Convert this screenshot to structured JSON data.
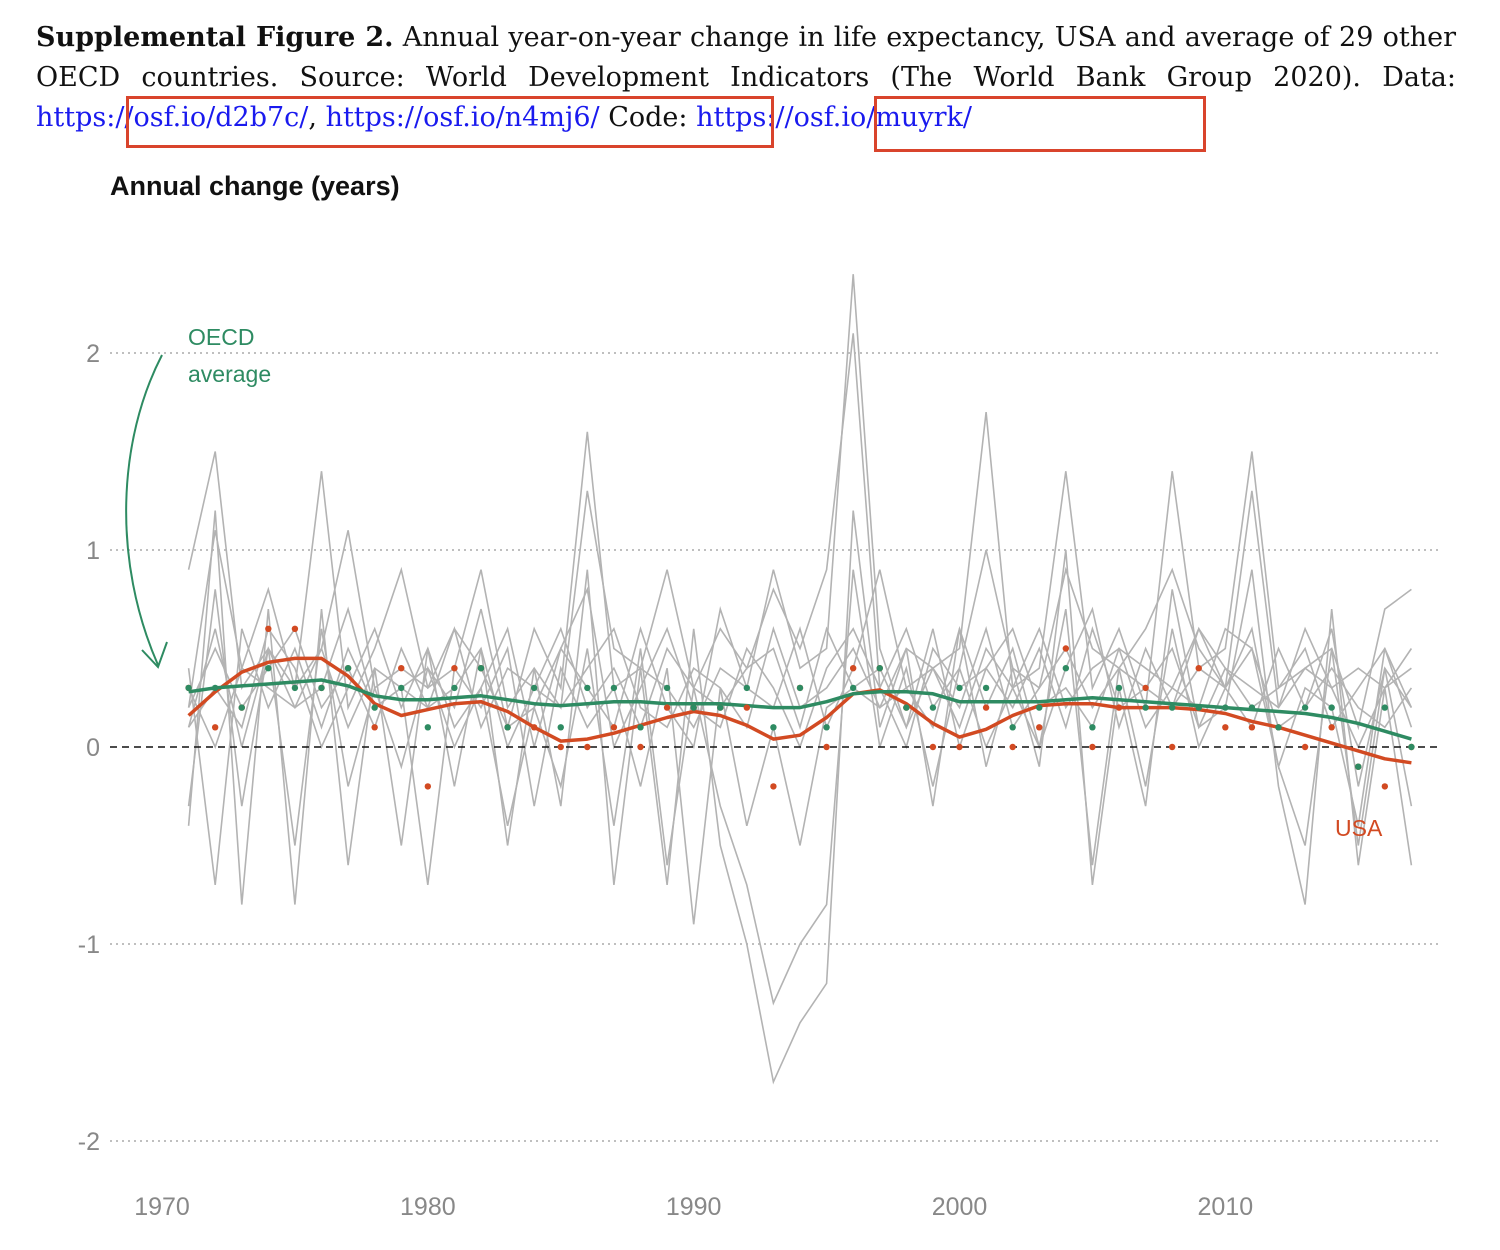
{
  "caption": {
    "label": "Supplemental Figure 2.",
    "text": "Annual year-on-year change in life expectancy, USA and average of 29 other OECD countries. Source: World Development Indicators (The World Bank Group 2020).",
    "data_label": "Data:",
    "data_link_1": "https://osf.io/d2b7c/",
    "separator": ",",
    "data_link_2": "https://osf.io/n4mj6/",
    "code_label": "Code:",
    "code_link": "https://osf.io/muyrk/"
  },
  "colors": {
    "usa": "#d24a22",
    "oecd": "#2e8b62",
    "countries": "#b3b3b3",
    "grid": "#aaaaaa",
    "highlight_box": "#d9442c",
    "link": "#1a1aee"
  },
  "chart_data": {
    "type": "line",
    "title": "Annual change (years)",
    "xlabel": "",
    "ylabel": "Annual change (years)",
    "xlim": [
      1970,
      2018
    ],
    "ylim": [
      -2,
      2.4
    ],
    "x_ticks": [
      1970,
      1980,
      1990,
      2000,
      2010
    ],
    "y_ticks": [
      -2,
      -1,
      0,
      1,
      2
    ],
    "grid": "horizontal dotted",
    "zero_line": "dashed",
    "annotations": [
      {
        "text_line1": "OECD",
        "text_line2": "average",
        "series": "OECD average",
        "arrow": true
      },
      {
        "text": "USA",
        "series": "USA"
      }
    ],
    "x": [
      1971,
      1972,
      1973,
      1974,
      1975,
      1976,
      1977,
      1978,
      1979,
      1980,
      1981,
      1982,
      1983,
      1984,
      1985,
      1986,
      1987,
      1988,
      1989,
      1990,
      1991,
      1992,
      1993,
      1994,
      1995,
      1996,
      1997,
      1998,
      1999,
      2000,
      2001,
      2002,
      2003,
      2004,
      2005,
      2006,
      2007,
      2008,
      2009,
      2010,
      2011,
      2012,
      2013,
      2014,
      2015,
      2016,
      2017
    ],
    "series": [
      {
        "name": "USA",
        "role": "points",
        "values": [
          0.3,
          0.1,
          0.2,
          0.6,
          0.6,
          0.3,
          0.4,
          0.1,
          0.4,
          -0.2,
          0.4,
          0.4,
          0.1,
          0.1,
          0.0,
          0.0,
          0.1,
          0.0,
          0.2,
          0.2,
          0.2,
          0.2,
          -0.2,
          0.3,
          0.0,
          0.4,
          0.4,
          0.2,
          0.0,
          0.0,
          0.2,
          0.0,
          0.1,
          0.5,
          0.0,
          0.2,
          0.3,
          0.0,
          0.4,
          0.1,
          0.1,
          0.1,
          0.0,
          0.1,
          -0.1,
          -0.2,
          0.0
        ]
      },
      {
        "name": "USA",
        "role": "smoothed",
        "values": [
          0.16,
          0.28,
          0.38,
          0.43,
          0.45,
          0.45,
          0.36,
          0.22,
          0.16,
          0.19,
          0.22,
          0.23,
          0.18,
          0.1,
          0.03,
          0.04,
          0.07,
          0.11,
          0.15,
          0.18,
          0.16,
          0.11,
          0.04,
          0.06,
          0.15,
          0.27,
          0.29,
          0.22,
          0.12,
          0.05,
          0.09,
          0.16,
          0.21,
          0.22,
          0.22,
          0.2,
          0.2,
          0.2,
          0.19,
          0.17,
          0.13,
          0.1,
          0.06,
          0.02,
          -0.02,
          -0.06,
          -0.08
        ]
      },
      {
        "name": "OECD average",
        "role": "points",
        "values": [
          0.3,
          0.3,
          0.2,
          0.4,
          0.3,
          0.3,
          0.4,
          0.2,
          0.3,
          0.1,
          0.3,
          0.4,
          0.1,
          0.3,
          0.1,
          0.3,
          0.3,
          0.1,
          0.3,
          0.2,
          0.2,
          0.3,
          0.1,
          0.3,
          0.1,
          0.3,
          0.4,
          0.2,
          0.2,
          0.3,
          0.3,
          0.1,
          0.2,
          0.4,
          0.1,
          0.3,
          0.2,
          0.2,
          0.2,
          0.2,
          0.2,
          0.1,
          0.2,
          0.2,
          -0.1,
          0.2,
          0.0
        ]
      },
      {
        "name": "OECD average",
        "role": "smoothed",
        "values": [
          0.28,
          0.3,
          0.31,
          0.32,
          0.33,
          0.34,
          0.31,
          0.26,
          0.24,
          0.24,
          0.25,
          0.26,
          0.24,
          0.22,
          0.21,
          0.22,
          0.23,
          0.23,
          0.22,
          0.22,
          0.22,
          0.21,
          0.2,
          0.2,
          0.23,
          0.27,
          0.28,
          0.28,
          0.27,
          0.23,
          0.23,
          0.23,
          0.23,
          0.24,
          0.25,
          0.24,
          0.23,
          0.22,
          0.21,
          0.2,
          0.19,
          0.18,
          0.17,
          0.15,
          0.12,
          0.08,
          0.04
        ]
      },
      {
        "name": "",
        "role": "country",
        "values": [
          0.9,
          1.5,
          0.3,
          0.5,
          0.3,
          0.5,
          1.1,
          0.3,
          0.4,
          0.3,
          0.6,
          0.4,
          0.1,
          0.6,
          0.3,
          1.6,
          0.3,
          0.4,
          0.3,
          0.1,
          0.4,
          0.3,
          0.9,
          0.4,
          0.5,
          2.4,
          0.5,
          0.1,
          0.4,
          0.5,
          1.7,
          0.3,
          0.4,
          1.4,
          0.3,
          0.6,
          0.2,
          1.4,
          0.4,
          0.5,
          1.5,
          0.3,
          0.4,
          0.5,
          0.1,
          0.7,
          0.8
        ]
      },
      {
        "name": "",
        "role": "country",
        "values": [
          0.2,
          1.1,
          0.4,
          0.8,
          0.3,
          1.4,
          0.2,
          0.5,
          0.9,
          0.3,
          0.4,
          0.9,
          0.2,
          0.4,
          0.2,
          1.3,
          0.5,
          0.4,
          0.9,
          0.3,
          0.6,
          0.4,
          0.8,
          0.5,
          0.9,
          2.1,
          0.3,
          0.6,
          0.2,
          0.4,
          1.0,
          0.4,
          0.3,
          0.9,
          0.5,
          0.4,
          0.6,
          0.9,
          0.5,
          0.3,
          1.3,
          0.2,
          0.6,
          0.3,
          0.4,
          0.3,
          0.5
        ]
      },
      {
        "name": "",
        "role": "country",
        "values": [
          -0.4,
          1.2,
          -0.8,
          0.7,
          -0.8,
          0.7,
          -0.6,
          0.4,
          -0.5,
          0.5,
          -0.2,
          0.5,
          -0.5,
          0.4,
          -0.3,
          0.9,
          -0.7,
          0.4,
          -0.7,
          0.6,
          -0.5,
          -1.0,
          -1.7,
          -1.4,
          -1.2,
          1.2,
          0.1,
          0.5,
          -0.3,
          0.6,
          -0.1,
          0.4,
          -0.1,
          1.0,
          -0.7,
          0.3,
          -0.3,
          0.8,
          0.1,
          0.2,
          0.9,
          -0.2,
          -0.8,
          0.7,
          -0.6,
          0.3,
          -0.6
        ]
      },
      {
        "name": "",
        "role": "country",
        "values": [
          -0.3,
          0.8,
          -0.3,
          0.5,
          -0.5,
          0.6,
          -0.2,
          0.3,
          -0.1,
          0.4,
          0.0,
          0.3,
          -0.4,
          0.2,
          -0.2,
          0.5,
          -0.4,
          0.5,
          -0.6,
          0.3,
          -0.3,
          -0.7,
          -1.3,
          -1.0,
          -0.8,
          0.9,
          0.0,
          0.4,
          -0.2,
          0.4,
          0.0,
          0.3,
          0.0,
          0.7,
          -0.6,
          0.4,
          -0.2,
          0.6,
          0.0,
          0.3,
          0.6,
          -0.1,
          -0.5,
          0.5,
          -0.5,
          0.4,
          -0.3
        ]
      },
      {
        "name": "",
        "role": "country",
        "values": [
          0.4,
          -0.7,
          0.6,
          0.2,
          0.5,
          0.1,
          0.5,
          0.2,
          0.3,
          -0.7,
          0.4,
          0.2,
          0.5,
          -0.3,
          0.4,
          0.1,
          0.3,
          -0.2,
          0.4,
          -0.9,
          0.3,
          -0.4,
          0.1,
          -0.5,
          0.2,
          0.3,
          0.4,
          0.1,
          0.6,
          0.0,
          0.4,
          0.2,
          0.5,
          0.1,
          0.6,
          0.2,
          0.3,
          0.2,
          0.4,
          0.3,
          0.5,
          -0.1,
          0.3,
          0.2,
          -0.4,
          0.5,
          0.1
        ]
      },
      {
        "name": "",
        "role": "country",
        "values": [
          0.1,
          0.3,
          0.1,
          0.6,
          0.4,
          0.0,
          0.3,
          0.6,
          0.2,
          0.5,
          0.1,
          0.3,
          0.6,
          0.0,
          0.5,
          0.3,
          0.1,
          0.6,
          0.2,
          0.0,
          0.7,
          0.3,
          0.2,
          0.6,
          0.1,
          0.4,
          0.9,
          0.3,
          0.1,
          0.6,
          0.2,
          0.5,
          0.0,
          0.4,
          0.7,
          0.1,
          0.5,
          0.2,
          0.6,
          0.3,
          0.1,
          0.5,
          0.2,
          0.6,
          -0.2,
          0.4,
          0.2
        ]
      },
      {
        "name": "",
        "role": "country",
        "values": [
          0.2,
          0.5,
          0.2,
          0.4,
          0.6,
          0.2,
          0.4,
          0.1,
          0.5,
          0.2,
          0.6,
          0.1,
          0.4,
          0.3,
          0.6,
          0.2,
          0.4,
          0.1,
          0.5,
          0.3,
          0.2,
          0.4,
          0.5,
          0.1,
          0.6,
          0.3,
          0.2,
          0.5,
          0.4,
          0.1,
          0.5,
          0.3,
          0.6,
          0.2,
          0.4,
          0.5,
          0.1,
          0.3,
          0.6,
          0.4,
          0.2,
          0.3,
          0.5,
          0.1,
          0.3,
          0.5,
          0.2
        ]
      },
      {
        "name": "",
        "role": "country",
        "values": [
          0.3,
          0.0,
          0.4,
          0.3,
          0.2,
          0.5,
          0.1,
          0.4,
          0.3,
          0.2,
          0.3,
          0.5,
          0.0,
          0.3,
          0.2,
          0.4,
          0.6,
          0.2,
          0.1,
          0.4,
          0.3,
          0.1,
          0.6,
          0.2,
          0.3,
          0.5,
          0.2,
          0.3,
          0.4,
          0.2,
          0.6,
          0.1,
          0.3,
          0.5,
          0.2,
          0.4,
          0.3,
          0.5,
          0.1,
          0.4,
          0.3,
          0.2,
          0.4,
          0.3,
          0.0,
          0.3,
          0.4
        ]
      },
      {
        "name": "",
        "role": "country",
        "values": [
          0.1,
          0.6,
          0.0,
          0.5,
          0.2,
          0.3,
          0.7,
          0.2,
          0.3,
          0.4,
          0.2,
          0.7,
          0.1,
          0.2,
          0.5,
          0.8,
          0.0,
          0.3,
          0.6,
          0.2,
          0.1,
          0.5,
          0.3,
          0.0,
          0.4,
          0.6,
          0.3,
          0.0,
          0.5,
          0.3,
          0.4,
          0.6,
          0.2,
          0.3,
          0.1,
          0.5,
          0.4,
          0.3,
          0.2,
          0.6,
          0.5,
          0.1,
          0.2,
          0.4,
          0.2,
          0.1,
          0.3
        ]
      }
    ]
  }
}
